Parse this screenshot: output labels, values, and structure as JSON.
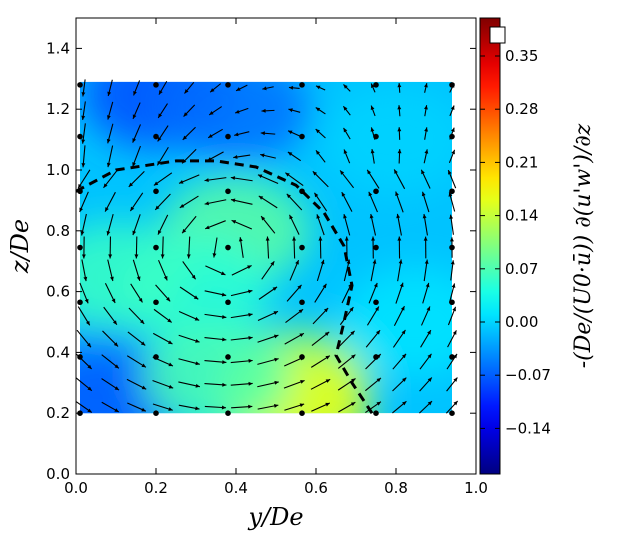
{
  "chart_data": {
    "type": "heatmap",
    "subtype": "contour-with-quiver",
    "colormap": "jet",
    "xlabel": "y/De",
    "ylabel": "z/De",
    "xlim": [
      0.0,
      1.0
    ],
    "ylim": [
      0.0,
      1.5
    ],
    "xticks": [
      "0.0",
      "0.2",
      "0.4",
      "0.6",
      "0.8",
      "1.0"
    ],
    "yticks": [
      "0.0",
      "0.2",
      "0.4",
      "0.6",
      "0.8",
      "1.0",
      "1.2",
      "1.4"
    ],
    "data_region": {
      "y": [
        0.01,
        0.94
      ],
      "z": [
        0.2,
        1.29
      ]
    },
    "colorbar": {
      "label": "-(De/(U0·ū)) ∂(u'w')/∂z",
      "range": [
        -0.2,
        0.4
      ],
      "ticks": [
        "−0.14",
        "−0.07",
        "0.00",
        "0.07",
        "0.14",
        "0.21",
        "0.28",
        "0.35"
      ],
      "extend_marker_color": "#ffffff"
    },
    "dashed_boundary": [
      [
        0.0,
        0.93
      ],
      [
        0.1,
        1.0
      ],
      [
        0.25,
        1.03
      ],
      [
        0.35,
        1.03
      ],
      [
        0.45,
        1.01
      ],
      [
        0.55,
        0.95
      ],
      [
        0.62,
        0.86
      ],
      [
        0.67,
        0.75
      ],
      [
        0.69,
        0.62
      ],
      [
        0.67,
        0.5
      ],
      [
        0.65,
        0.39
      ],
      [
        0.69,
        0.3
      ],
      [
        0.72,
        0.24
      ],
      [
        0.74,
        0.2
      ]
    ],
    "measurement_points": {
      "y": [
        0.01,
        0.2,
        0.38,
        0.565,
        0.75,
        0.94
      ],
      "z": [
        1.28,
        1.11,
        0.93,
        0.745,
        0.565,
        0.385,
        0.2
      ]
    },
    "field_samples": [
      {
        "y": 0.2,
        "z": 1.25,
        "value": -0.08
      },
      {
        "y": 0.4,
        "z": 1.2,
        "value": -0.06
      },
      {
        "y": 0.8,
        "z": 1.1,
        "value": 0.0
      },
      {
        "y": 0.4,
        "z": 0.8,
        "value": 0.08
      },
      {
        "y": 0.3,
        "z": 0.6,
        "value": 0.05
      },
      {
        "y": 0.1,
        "z": 0.65,
        "value": 0.06
      },
      {
        "y": 0.55,
        "z": 0.3,
        "value": 0.12
      },
      {
        "y": 0.55,
        "z": 0.22,
        "value": 0.16
      },
      {
        "y": 0.85,
        "z": 0.5,
        "value": 0.01
      },
      {
        "y": 0.05,
        "z": 0.3,
        "value": -0.05
      },
      {
        "y": 0.08,
        "z": 0.22,
        "value": -0.07
      },
      {
        "y": 0.35,
        "z": 0.32,
        "value": 0.07
      }
    ]
  }
}
